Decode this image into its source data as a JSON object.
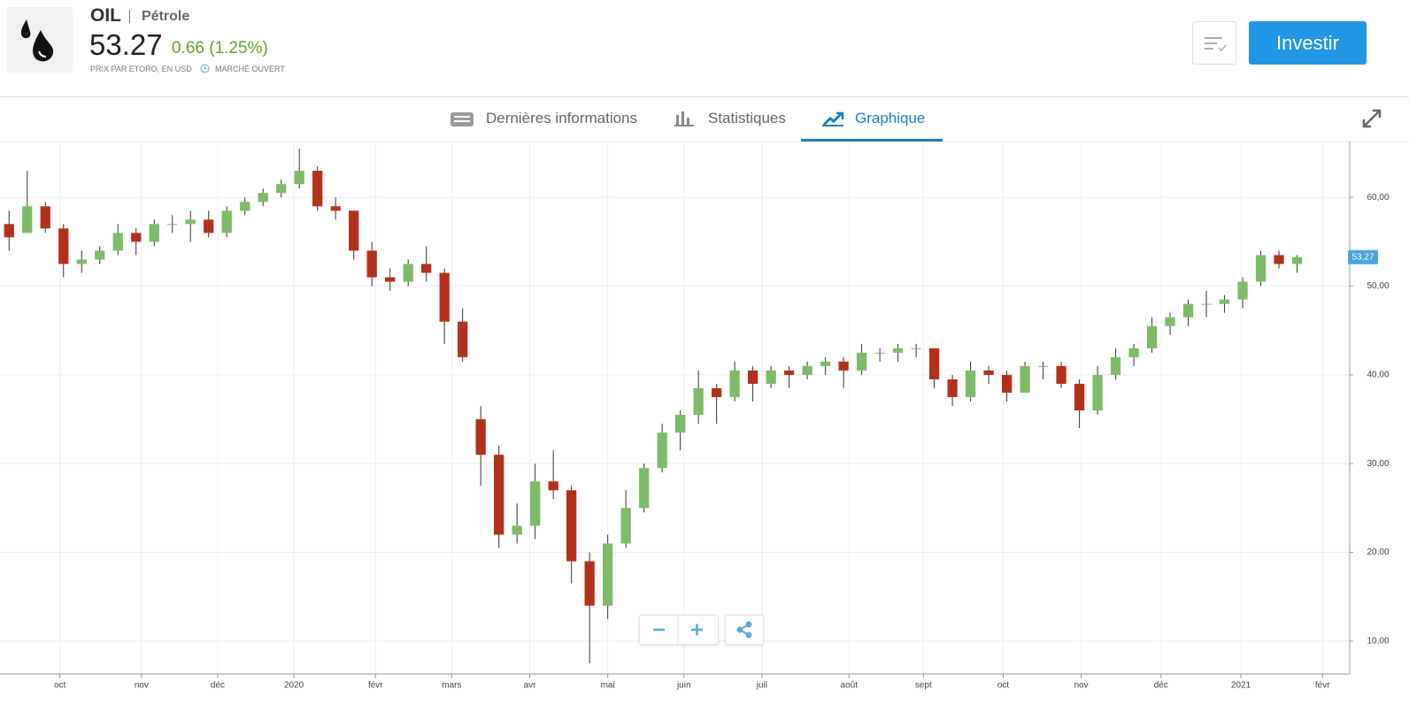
{
  "header": {
    "symbol": "OIL",
    "name": "Pétrole",
    "price": "53.27",
    "change": "0.66 (1.25%)",
    "source": "PRIX PAR ETORO, EN USD",
    "market_status": "MARCHÉ OUVERT",
    "invest_button": "Investir"
  },
  "tabs": [
    "Dernières informations",
    "Statistiques",
    "Graphique"
  ],
  "chart_data": {
    "type": "candlestick",
    "up_color": "#7dbb68",
    "down_color": "#b3311c",
    "x": [
      0.5,
      1.5,
      2.5,
      3.5,
      4.5,
      5.5,
      6.5,
      7.5,
      8.5,
      9.5,
      10.5,
      11.5,
      12.5,
      13.5,
      14.5,
      15.5,
      16.5,
      17.5,
      18.5,
      19.5,
      20.5,
      21.5,
      22.5,
      23.5,
      24.5,
      25.5,
      26.5,
      27.5,
      28.5,
      29.5,
      30.5,
      31.5,
      32.5,
      33.5,
      34.5,
      35.5,
      36.5,
      37.5,
      38.5,
      39.5,
      40.5,
      41.5,
      42.5,
      43.5,
      44.5,
      45.5,
      46.5,
      47.5,
      48.5,
      49.5,
      50.5,
      51.5,
      52.5,
      53.5,
      54.5,
      55.5,
      56.5,
      57.5,
      58.5,
      59.5,
      60.5,
      61.5,
      62.5,
      63.5,
      64.5,
      65.5,
      66.5,
      67.5,
      68.5,
      69.5,
      70.5,
      71.5
    ],
    "open": [
      57,
      56,
      59,
      56.5,
      52.5,
      53,
      54,
      56,
      55,
      57,
      57,
      57.5,
      56,
      58.5,
      59.5,
      60.5,
      61.5,
      63,
      59,
      58.5,
      54,
      51,
      50.5,
      52.5,
      51.5,
      46,
      35,
      31,
      22,
      23,
      28,
      27,
      19,
      14,
      21,
      25,
      29.5,
      33.5,
      35.5,
      38.5,
      37.5,
      40.5,
      39,
      40.5,
      40,
      41,
      41.5,
      40.5,
      42.5,
      42.5,
      43,
      43,
      39.5,
      37.5,
      40.5,
      40,
      38,
      41,
      41,
      39,
      36,
      40,
      42,
      43,
      45.5,
      46.5,
      48,
      48,
      48.5,
      50.5,
      53.5,
      52.5
    ],
    "high": [
      58.5,
      63,
      59.5,
      57,
      54,
      54.5,
      57,
      56.5,
      57.5,
      58,
      58.5,
      58.5,
      59,
      60,
      61,
      62,
      65.5,
      63.5,
      60,
      58.5,
      55,
      52,
      53,
      54.5,
      52,
      47.5,
      36.5,
      32,
      25.5,
      30,
      31.5,
      27.5,
      20,
      22,
      27,
      30,
      34.5,
      36,
      40.5,
      39,
      41.5,
      41,
      41,
      41,
      41.5,
      42,
      42,
      43.5,
      43,
      43.5,
      43.5,
      43,
      40,
      41.5,
      41,
      40.5,
      41.5,
      41.5,
      41.5,
      39.5,
      41,
      43,
      43.5,
      46.5,
      47,
      48.5,
      49.5,
      49,
      51,
      54,
      54,
      53.5
    ],
    "low": [
      54,
      56,
      56,
      51,
      51.5,
      52.5,
      53.5,
      53.5,
      54.5,
      56,
      55,
      55.5,
      55.5,
      58,
      59,
      60,
      61,
      58.5,
      57.5,
      53,
      50,
      49.5,
      50,
      50.5,
      43.5,
      41.5,
      27.5,
      20.5,
      21,
      21.5,
      26,
      16.5,
      7.5,
      12.5,
      20.5,
      24.5,
      29,
      31.5,
      34.5,
      34.5,
      37,
      37,
      38.5,
      38.5,
      39.5,
      40,
      38.5,
      40,
      41.5,
      41.5,
      42,
      38.5,
      36.5,
      37,
      39,
      37,
      38,
      39.5,
      38.5,
      34,
      35.5,
      39.5,
      41,
      42.5,
      44.5,
      45.5,
      46.5,
      47,
      47.5,
      50,
      52,
      51.5
    ],
    "close": [
      55.5,
      59,
      56.5,
      52.5,
      53,
      54,
      56,
      55,
      57,
      57,
      57.5,
      56,
      58.5,
      59.5,
      60.5,
      61.5,
      63,
      59,
      58.5,
      54,
      51,
      50.5,
      52.5,
      51.5,
      46,
      42,
      31,
      22,
      23,
      28,
      27,
      19,
      14,
      21,
      25,
      29.5,
      33.5,
      35.5,
      38.5,
      37.5,
      40.5,
      39,
      40.5,
      40,
      41,
      41.5,
      40.5,
      42.5,
      42.5,
      43,
      43,
      39.5,
      37.5,
      40.5,
      40,
      38,
      41,
      41,
      39,
      36,
      40,
      42,
      43,
      45.5,
      46.5,
      48,
      48,
      48.5,
      50.5,
      53.5,
      52.5,
      53.27
    ],
    "current_price": 53.27,
    "current_price_label": "53,27",
    "xlim": [
      0,
      74.4
    ],
    "xticks": [
      {
        "value": 3.3,
        "label": "oct"
      },
      {
        "value": 7.8,
        "label": "nov"
      },
      {
        "value": 12.0,
        "label": "déc"
      },
      {
        "value": 16.2,
        "label": "2020"
      },
      {
        "value": 20.7,
        "label": "févr"
      },
      {
        "value": 24.9,
        "label": "mars"
      },
      {
        "value": 29.2,
        "label": "avr"
      },
      {
        "value": 33.5,
        "label": "mai"
      },
      {
        "value": 37.7,
        "label": "juin"
      },
      {
        "value": 42.0,
        "label": "juil"
      },
      {
        "value": 46.8,
        "label": "août"
      },
      {
        "value": 50.9,
        "label": "sept"
      },
      {
        "value": 55.3,
        "label": "oct"
      },
      {
        "value": 59.6,
        "label": "nov"
      },
      {
        "value": 64.0,
        "label": "déc"
      },
      {
        "value": 68.4,
        "label": "2021"
      },
      {
        "value": 72.9,
        "label": "févr"
      }
    ],
    "ylim": [
      6.3,
      66.3
    ],
    "yticks": [
      {
        "value": 10,
        "label": "10,00"
      },
      {
        "value": 20,
        "label": "20,00"
      },
      {
        "value": 30,
        "label": "30,00"
      },
      {
        "value": 40,
        "label": "40,00"
      },
      {
        "value": 50,
        "label": "50,00"
      },
      {
        "value": 60,
        "label": "60,00"
      }
    ],
    "grid": true
  }
}
